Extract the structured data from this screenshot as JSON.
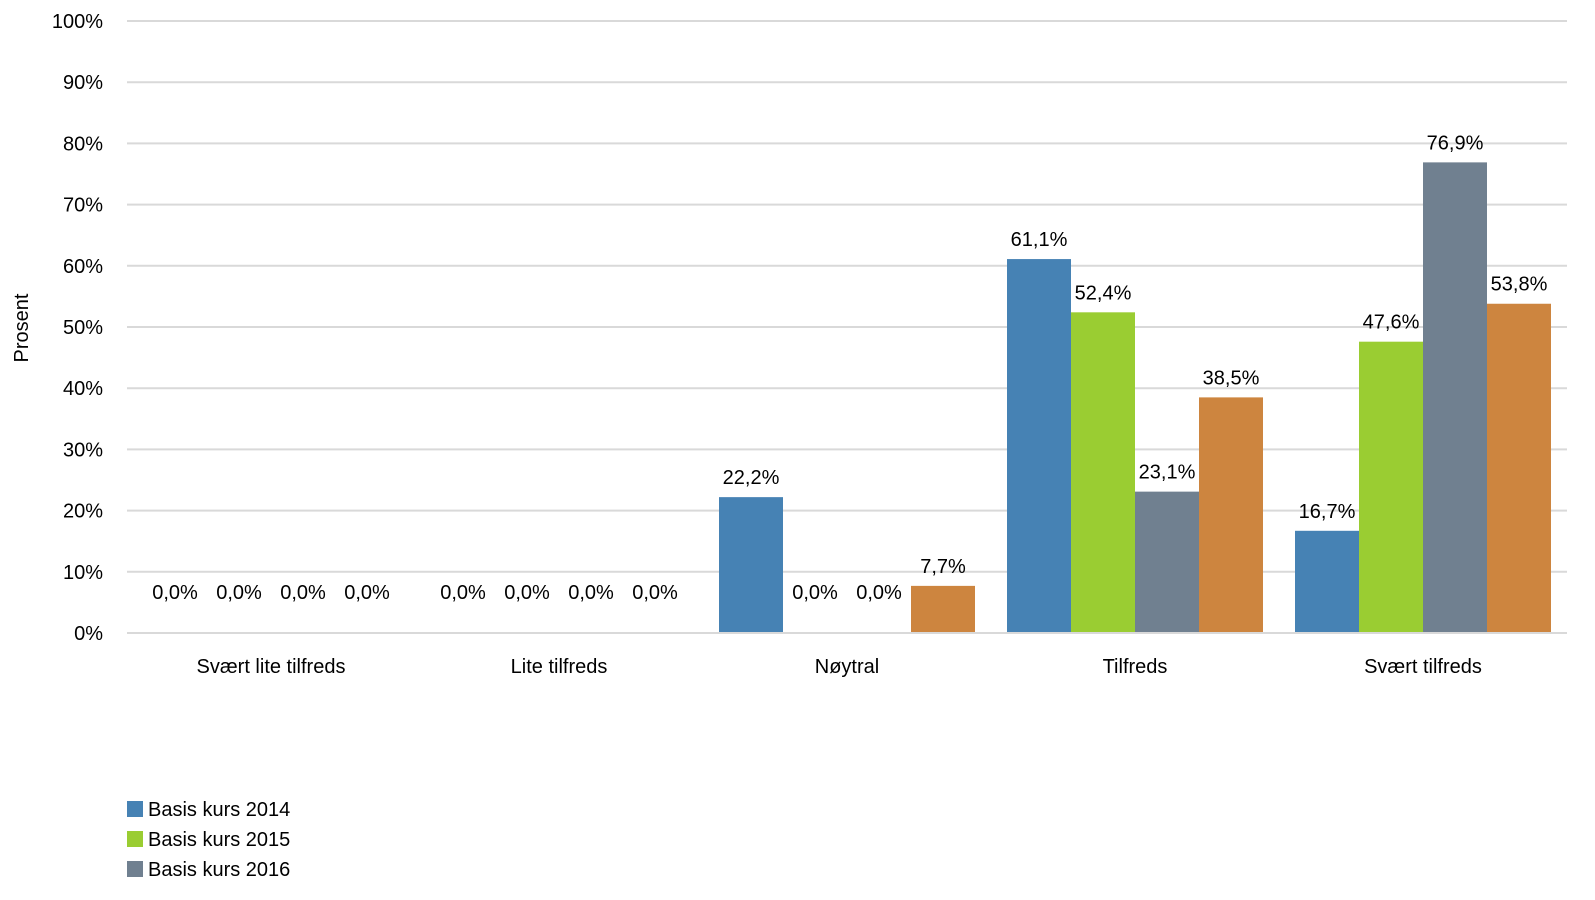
{
  "chart_data": {
    "type": "bar",
    "title": "",
    "xlabel": "",
    "ylabel": "Prosent",
    "ylim": [
      0,
      100
    ],
    "yticks": [
      "0%",
      "10%",
      "20%",
      "30%",
      "40%",
      "50%",
      "60%",
      "70%",
      "80%",
      "90%",
      "100%"
    ],
    "categories": [
      "Svært lite tilfreds",
      "Lite tilfreds",
      "Nøytral",
      "Tilfreds",
      "Svært tilfreds"
    ],
    "series": [
      {
        "name": "Basis kurs 2014",
        "color": "#4682B4",
        "values": [
          0.0,
          0.0,
          22.2,
          61.1,
          16.7
        ],
        "labels": [
          "0,0%",
          "0,0%",
          "22,2%",
          "61,1%",
          "16,7%"
        ]
      },
      {
        "name": "Basis kurs 2015",
        "color": "#9ACD32",
        "values": [
          0.0,
          0.0,
          0.0,
          52.4,
          47.6
        ],
        "labels": [
          "0,0%",
          "0,0%",
          "0,0%",
          "52,4%",
          "47,6%"
        ]
      },
      {
        "name": "Basis kurs 2016",
        "color": "#708090",
        "values": [
          0.0,
          0.0,
          0.0,
          23.1,
          76.9
        ],
        "labels": [
          "0,0%",
          "0,0%",
          "0,0%",
          "23,1%",
          "76,9%"
        ]
      },
      {
        "name": "",
        "color": "#CD853F",
        "values": [
          0.0,
          0.0,
          7.7,
          38.5,
          53.8
        ],
        "labels": [
          "0,0%",
          "0,0%",
          "7,7%",
          "38,5%",
          "53,8%"
        ]
      }
    ],
    "grid": true,
    "legend_position": "bottom-left"
  }
}
